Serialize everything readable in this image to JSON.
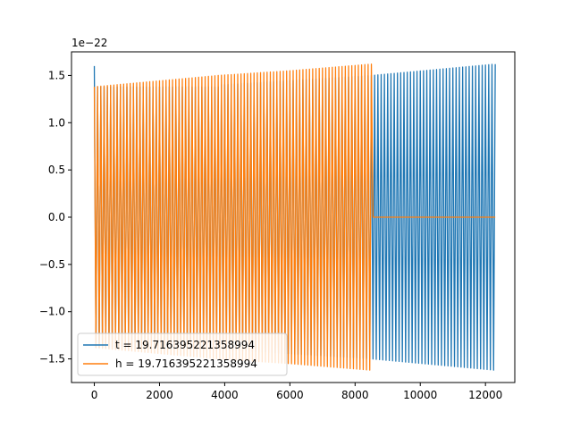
{
  "chart_data": {
    "type": "line",
    "title": "",
    "xlabel": "",
    "ylabel": "",
    "y_offset_label": "1e−22",
    "xlim": [
      -700,
      12900
    ],
    "ylim": [
      -1.75,
      1.75
    ],
    "x_ticks": [
      0,
      2000,
      4000,
      6000,
      8000,
      10000,
      12000
    ],
    "x_tick_labels": [
      "0",
      "2000",
      "4000",
      "6000",
      "8000",
      "10000",
      "12000"
    ],
    "y_ticks": [
      -1.5,
      -1.0,
      -0.5,
      0.0,
      0.5,
      1.0,
      1.5
    ],
    "y_tick_labels": [
      "−1.5",
      "−1.0",
      "−0.5",
      "0.0",
      "0.5",
      "1.0",
      "1.5"
    ],
    "grid": false,
    "legend_position": "lower-left",
    "series": [
      {
        "name": "t = 19.716395221358994",
        "color": "#1f77b4",
        "x_range": [
          0,
          12300
        ],
        "oscillation_period": 100,
        "envelope": [
          {
            "x": 0,
            "amp": 1.6
          },
          {
            "x": 50,
            "amp": 1.38
          },
          {
            "x": 3800,
            "amp": 1.38
          },
          {
            "x": 3850,
            "amp": 1.4
          },
          {
            "x": 8500,
            "amp": 1.5
          },
          {
            "x": 12300,
            "amp": 1.62
          }
        ]
      },
      {
        "name": "h = 19.716395221358994",
        "color": "#ff7f0e",
        "x_range": [
          0,
          12300
        ],
        "oscillation_period": 100,
        "envelope": [
          {
            "x": 0,
            "amp": 1.38
          },
          {
            "x": 3800,
            "amp": 1.5
          },
          {
            "x": 6000,
            "amp": 1.55
          },
          {
            "x": 8500,
            "amp": 1.62
          },
          {
            "x": 8510,
            "amp": 0
          },
          {
            "x": 12300,
            "amp": 0
          }
        ]
      }
    ]
  }
}
